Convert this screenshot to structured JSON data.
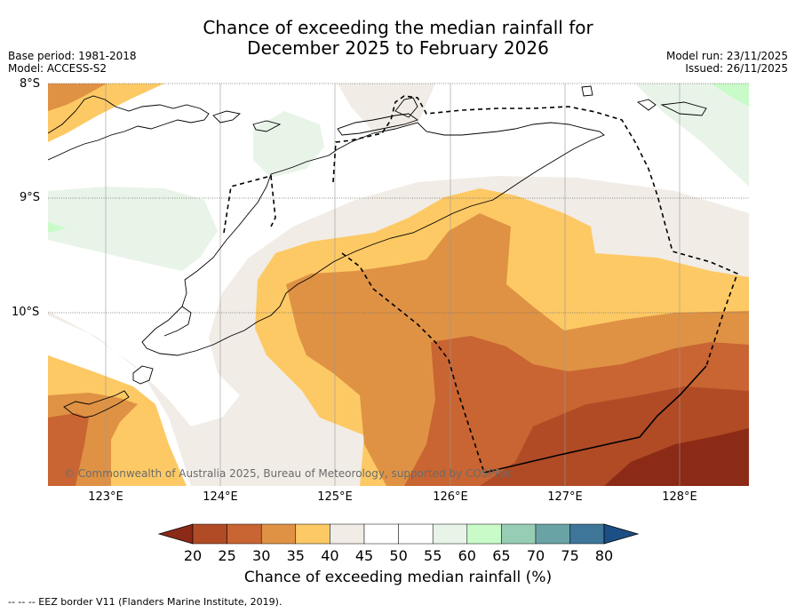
{
  "title": {
    "line1": "Chance of exceeding the median rainfall for",
    "line2": "December 2025 to February 2026"
  },
  "meta": {
    "base_period": "Base period: 1981-2018",
    "model": "Model: ACCESS-S2",
    "model_run": "Model run: 23/11/2025",
    "issued": "Issued: 26/11/2025"
  },
  "map": {
    "lat_labels": [
      "8°S",
      "9°S",
      "10°S"
    ],
    "lon_labels": [
      "123°E",
      "124°E",
      "125°E",
      "126°E",
      "127°E",
      "128°E"
    ],
    "copyright": "© Commonwealth of Australia 2025, Bureau of Meteorology, supported by COSPPac",
    "extent": {
      "lon_min": 122.5,
      "lon_max": 128.6,
      "lat_min": -11.5,
      "lat_max": -8.0
    }
  },
  "colorbar": {
    "title": "Chance of exceeding median rainfall (%)",
    "ticks": [
      "20",
      "25",
      "30",
      "35",
      "40",
      "45",
      "50",
      "55",
      "60",
      "65",
      "70",
      "75",
      "80"
    ],
    "colors": {
      "below_20": "#8b2a17",
      "20_25": "#b04b25",
      "25_30": "#c96532",
      "30_35": "#df9244",
      "35_40": "#fdc965",
      "40_45": "#f1ece6",
      "45_50": "#ffffff",
      "50_55": "#ffffff",
      "55_60": "#e9f4e8",
      "60_65": "#c8fbc8",
      "65_70": "#98cdb5",
      "70_75": "#6aa3a6",
      "75_80": "#3d7699",
      "above_80": "#1b4f86"
    }
  },
  "footnote": "--  --  -- EEZ border V11 (Flanders Marine Institute, 2019)."
}
